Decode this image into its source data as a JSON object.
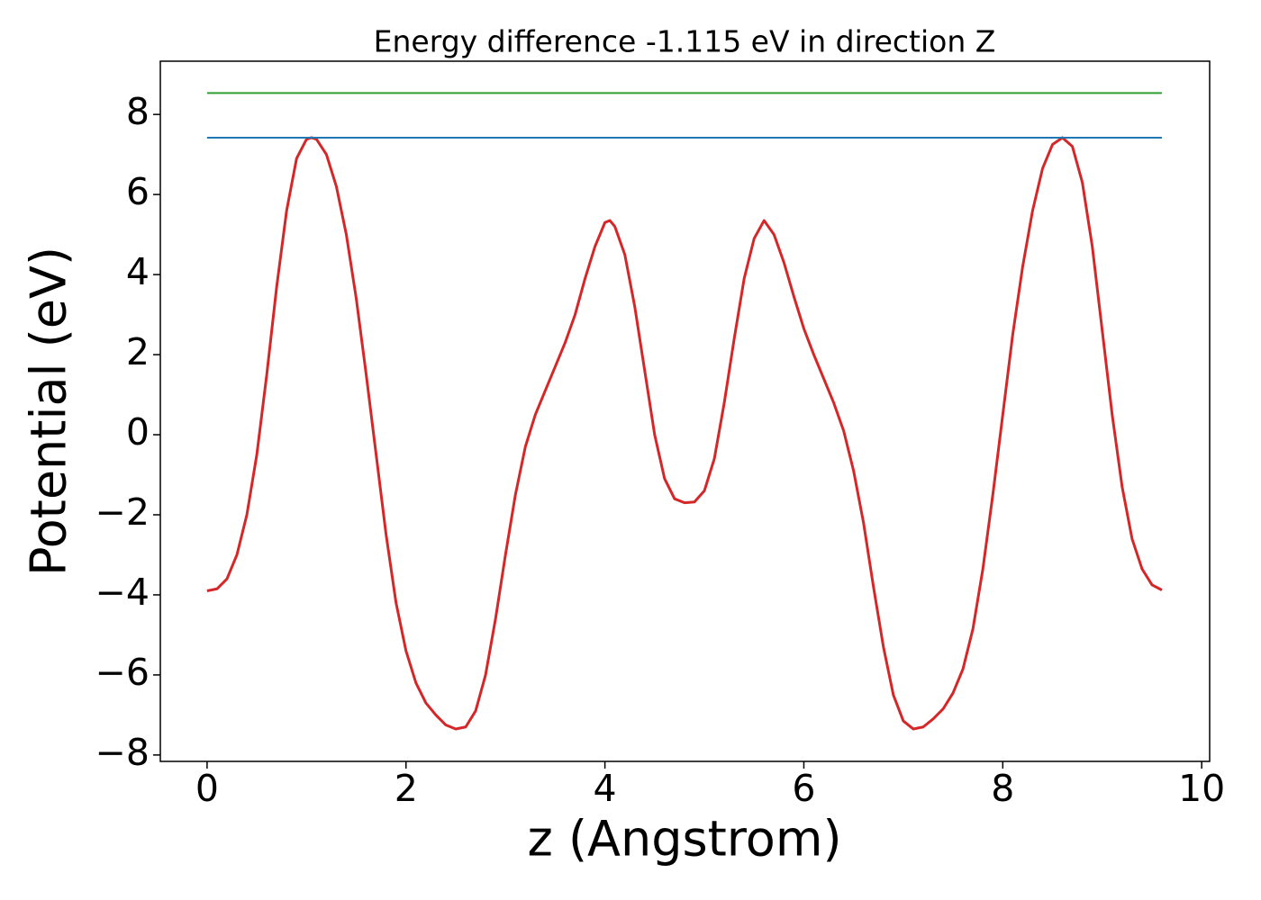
{
  "chart_data": {
    "type": "line",
    "title": "Energy difference -1.115 eV in direction Z",
    "x_label": "z (Angstrom)",
    "y_label": "Potential (eV)",
    "xlim": [
      -0.47,
      10.08
    ],
    "ylim": [
      -8.16,
      9.33
    ],
    "xticks": [
      0,
      2,
      4,
      6,
      8,
      10
    ],
    "yticks": [
      {
        "value": -8,
        "label": "−8"
      },
      {
        "value": -6,
        "label": "−6"
      },
      {
        "value": -4,
        "label": "−4"
      },
      {
        "value": -2,
        "label": "−2"
      },
      0,
      2,
      4,
      6,
      8
    ],
    "grid": false,
    "series": [
      {
        "color": "#d62728",
        "x": [
          0,
          0.1,
          0.2,
          0.3,
          0.4,
          0.5,
          0.6,
          0.7,
          0.8,
          0.9,
          1.0,
          1.05,
          1.1,
          1.2,
          1.3,
          1.4,
          1.5,
          1.6,
          1.7,
          1.8,
          1.9,
          2.0,
          2.1,
          2.2,
          2.3,
          2.4,
          2.5,
          2.6,
          2.7,
          2.8,
          2.9,
          3.0,
          3.1,
          3.2,
          3.3,
          3.4,
          3.5,
          3.6,
          3.7,
          3.8,
          3.9,
          4.0,
          4.05,
          4.1,
          4.2,
          4.3,
          4.4,
          4.5,
          4.6,
          4.7,
          4.8,
          4.9,
          5.0,
          5.1,
          5.2,
          5.3,
          5.4,
          5.5,
          5.6,
          5.7,
          5.8,
          5.9,
          6.0,
          6.1,
          6.2,
          6.3,
          6.4,
          6.5,
          6.6,
          6.7,
          6.8,
          6.9,
          7.0,
          7.1,
          7.2,
          7.3,
          7.4,
          7.5,
          7.6,
          7.7,
          7.8,
          7.9,
          8.0,
          8.1,
          8.2,
          8.3,
          8.4,
          8.5,
          8.6,
          8.7,
          8.8,
          8.9,
          9.0,
          9.1,
          9.2,
          9.3,
          9.4,
          9.5,
          9.6
        ],
        "values": [
          -3.9,
          -3.85,
          -3.6,
          -3.0,
          -2.0,
          -0.5,
          1.5,
          3.7,
          5.6,
          6.9,
          7.38,
          7.42,
          7.38,
          7.0,
          6.2,
          5.0,
          3.4,
          1.5,
          -0.5,
          -2.5,
          -4.2,
          -5.4,
          -6.2,
          -6.7,
          -7.0,
          -7.25,
          -7.35,
          -7.3,
          -6.9,
          -6.0,
          -4.6,
          -3.0,
          -1.5,
          -0.3,
          0.5,
          1.1,
          1.7,
          2.3,
          3.0,
          3.9,
          4.7,
          5.3,
          5.35,
          5.2,
          4.5,
          3.2,
          1.6,
          0.0,
          -1.1,
          -1.6,
          -1.7,
          -1.68,
          -1.4,
          -0.6,
          0.8,
          2.4,
          3.9,
          4.9,
          5.35,
          5.0,
          4.3,
          3.45,
          2.65,
          2.0,
          1.4,
          0.8,
          0.1,
          -0.9,
          -2.2,
          -3.8,
          -5.3,
          -6.5,
          -7.15,
          -7.35,
          -7.3,
          -7.1,
          -6.85,
          -6.45,
          -5.85,
          -4.85,
          -3.35,
          -1.5,
          0.5,
          2.5,
          4.2,
          5.6,
          6.65,
          7.25,
          7.42,
          7.2,
          6.3,
          4.7,
          2.6,
          0.5,
          -1.3,
          -2.6,
          -3.35,
          -3.75,
          -3.88
        ]
      },
      {
        "color": "#2ca02c",
        "x": [
          0,
          9.6
        ],
        "values": [
          8.535,
          8.535
        ]
      },
      {
        "color": "#1f77b4",
        "x": [
          0,
          9.6
        ],
        "values": [
          7.42,
          7.42
        ]
      }
    ]
  }
}
